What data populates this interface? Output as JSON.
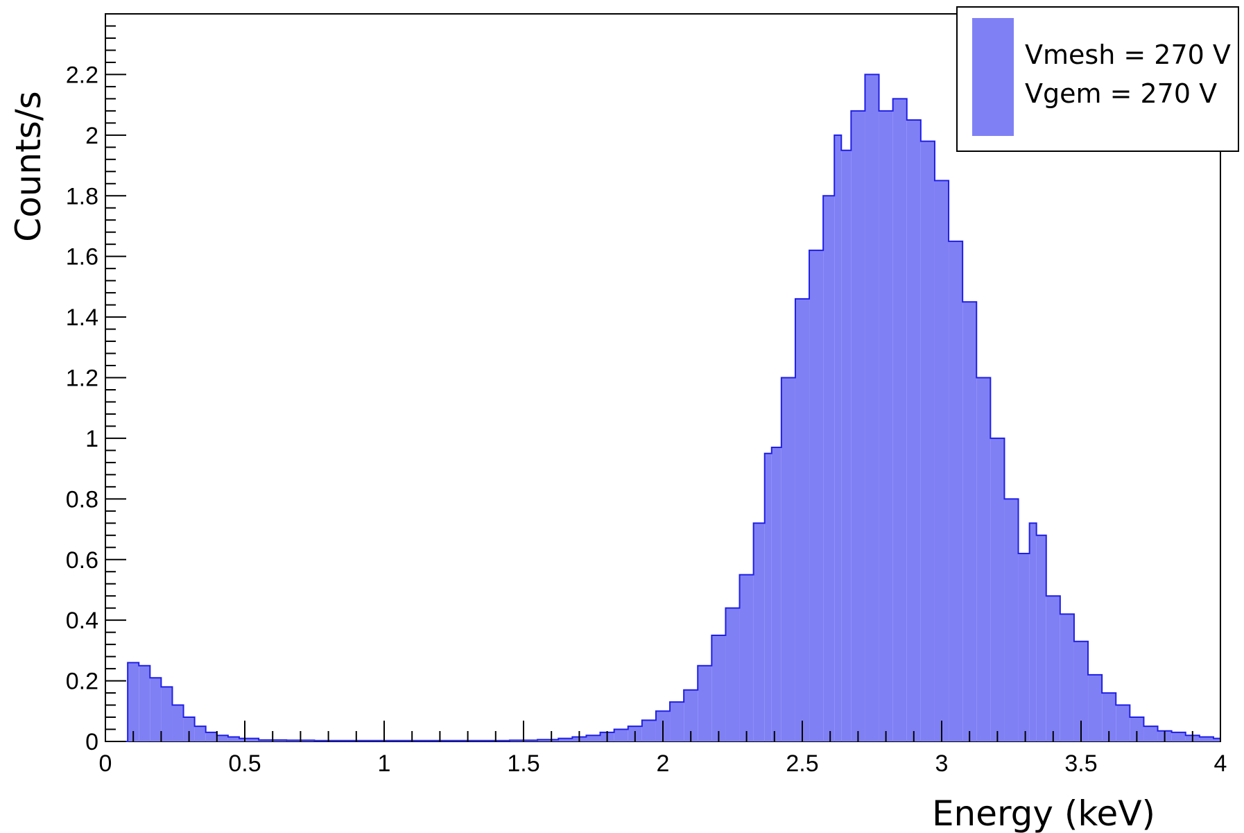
{
  "chart_data": {
    "type": "bar",
    "title": "",
    "xlabel": "Energy (keV)",
    "ylabel": "Counts/s",
    "xlim": [
      0,
      4
    ],
    "ylim": [
      0,
      2.4
    ],
    "grid": false,
    "legend_position": "top-right",
    "x_ticks": [
      "0",
      "0.5",
      "1",
      "1.5",
      "2",
      "2.5",
      "3",
      "3.5",
      "4"
    ],
    "y_ticks": [
      "0",
      "0.2",
      "0.4",
      "0.6",
      "0.8",
      "1",
      "1.2",
      "1.4",
      "1.6",
      "1.8",
      "2",
      "2.2"
    ],
    "fill_color": "#8080f5",
    "line_color": "#1f1fe6",
    "legend": [
      "Vmesh = 270 V",
      "Vgem = 270 V"
    ],
    "x": [
      0.06,
      0.1,
      0.14,
      0.18,
      0.22,
      0.26,
      0.3,
      0.34,
      0.38,
      0.42,
      0.46,
      0.5,
      0.6,
      0.7,
      0.8,
      0.9,
      1.0,
      1.1,
      1.2,
      1.3,
      1.4,
      1.5,
      1.6,
      1.65,
      1.7,
      1.75,
      1.8,
      1.85,
      1.9,
      1.95,
      2.0,
      2.05,
      2.1,
      2.15,
      2.2,
      2.25,
      2.3,
      2.35,
      2.38,
      2.4,
      2.45,
      2.5,
      2.55,
      2.6,
      2.63,
      2.65,
      2.7,
      2.75,
      2.8,
      2.85,
      2.9,
      2.95,
      3.0,
      3.05,
      3.1,
      3.15,
      3.2,
      3.25,
      3.3,
      3.33,
      3.35,
      3.4,
      3.45,
      3.5,
      3.55,
      3.6,
      3.65,
      3.7,
      3.75,
      3.8,
      3.85,
      3.9,
      3.95,
      4.0
    ],
    "values": [
      0.0,
      0.26,
      0.25,
      0.21,
      0.18,
      0.12,
      0.08,
      0.05,
      0.03,
      0.02,
      0.015,
      0.01,
      0.005,
      0.004,
      0.003,
      0.003,
      0.003,
      0.003,
      0.003,
      0.003,
      0.003,
      0.004,
      0.006,
      0.01,
      0.015,
      0.02,
      0.03,
      0.04,
      0.05,
      0.07,
      0.1,
      0.13,
      0.17,
      0.25,
      0.35,
      0.44,
      0.55,
      0.72,
      0.95,
      0.97,
      1.2,
      1.46,
      1.62,
      1.8,
      2.0,
      1.95,
      2.08,
      2.2,
      2.08,
      2.12,
      2.05,
      1.98,
      1.85,
      1.65,
      1.45,
      1.2,
      1.0,
      0.8,
      0.62,
      0.72,
      0.68,
      0.48,
      0.42,
      0.33,
      0.22,
      0.16,
      0.12,
      0.08,
      0.05,
      0.035,
      0.03,
      0.02,
      0.015,
      0.01
    ]
  }
}
